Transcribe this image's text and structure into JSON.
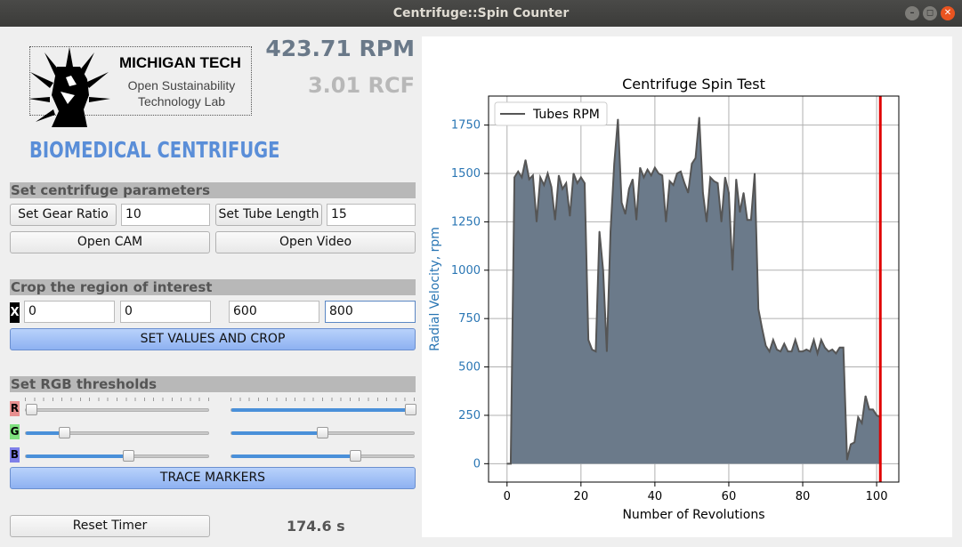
{
  "window": {
    "title": "Centrifuge::Spin Counter",
    "buttons": [
      "–",
      "◻",
      "✕"
    ]
  },
  "logo": {
    "line1": "MICHIGAN TECH",
    "line2": "Open Sustainability",
    "line3": "Technology Lab"
  },
  "brand": "BIOMEDICAL CENTRIFUGE",
  "readouts": {
    "rpm": "423.71 RPM",
    "rcf": "3.01 RCF"
  },
  "params": {
    "header": "Set centrifuge parameters",
    "gear_ratio_button": "Set Gear Ratio",
    "gear_ratio_value": "10",
    "tube_length_button": "Set Tube Length",
    "tube_length_value": "15",
    "open_cam": "Open CAM",
    "open_video": "Open Video"
  },
  "crop": {
    "header": "Crop the region of interest",
    "x_label": "X",
    "values": [
      "0",
      "0",
      "600",
      "800"
    ],
    "button": "SET VALUES AND CROP"
  },
  "rgb": {
    "header": "Set RGB thresholds",
    "channels": [
      {
        "label": "R",
        "color": "#e88f8f",
        "low": 0.0,
        "high": 1.0
      },
      {
        "label": "G",
        "color": "#7ee07e",
        "low": 0.19,
        "high": 0.49
      },
      {
        "label": "B",
        "color": "#7f7fe8",
        "low": 0.56,
        "high": 0.68
      }
    ],
    "button": "TRACE MARKERS"
  },
  "timer": {
    "reset_button": "Reset Timer",
    "elapsed": "174.6 s"
  },
  "chart_data": {
    "type": "area",
    "title": "Centrifuge Spin Test",
    "xlabel": "Number of Revolutions",
    "ylabel": "Radial Velocity, rpm",
    "xlim": [
      -5,
      106
    ],
    "ylim": [
      -95,
      1900
    ],
    "xticks": [
      0,
      20,
      40,
      60,
      80,
      100
    ],
    "yticks": [
      0,
      250,
      500,
      750,
      1000,
      1250,
      1500,
      1750
    ],
    "grid": true,
    "legend": "top-left",
    "marker_x": 101,
    "marker_color": "#e00000",
    "fill_color": "#6b7a8a",
    "line_color": "#555555",
    "series": [
      {
        "name": "Tubes RPM",
        "x": [
          0,
          1,
          2,
          3,
          4,
          5,
          6,
          7,
          8,
          9,
          10,
          11,
          12,
          13,
          14,
          15,
          16,
          17,
          18,
          19,
          20,
          21,
          22,
          23,
          24,
          25,
          26,
          27,
          28,
          29,
          30,
          31,
          32,
          33,
          34,
          35,
          36,
          37,
          38,
          39,
          40,
          41,
          42,
          43,
          44,
          45,
          46,
          47,
          48,
          49,
          50,
          51,
          52,
          53,
          54,
          55,
          56,
          57,
          58,
          59,
          60,
          61,
          62,
          63,
          64,
          65,
          66,
          67,
          68,
          69,
          70,
          71,
          72,
          73,
          74,
          75,
          76,
          77,
          78,
          79,
          80,
          81,
          82,
          83,
          84,
          85,
          86,
          87,
          88,
          89,
          90,
          91,
          92,
          93,
          94,
          95,
          96,
          97,
          98,
          99,
          100,
          101
        ],
        "values": [
          0,
          0,
          1480,
          1510,
          1480,
          1570,
          1470,
          1490,
          1250,
          1480,
          1440,
          1500,
          1430,
          1260,
          1490,
          1420,
          1450,
          1280,
          1500,
          1450,
          1480,
          1450,
          640,
          590,
          580,
          1200,
          1000,
          580,
          1200,
          1550,
          1780,
          1350,
          1290,
          1420,
          1470,
          1260,
          1530,
          1480,
          1520,
          1490,
          1530,
          1500,
          1490,
          1250,
          1460,
          1440,
          1500,
          1510,
          1450,
          1400,
          1550,
          1580,
          1790,
          1400,
          1250,
          1480,
          1460,
          1450,
          1250,
          1480,
          1400,
          1000,
          1470,
          1300,
          1400,
          1260,
          1260,
          1500,
          800,
          700,
          610,
          580,
          640,
          590,
          580,
          620,
          580,
          580,
          640,
          580,
          580,
          590,
          580,
          640,
          570,
          640,
          600,
          580,
          590,
          570,
          600,
          600,
          20,
          100,
          110,
          240,
          210,
          350,
          280,
          280,
          250,
          240
        ],
        "color": "#555555"
      }
    ]
  }
}
